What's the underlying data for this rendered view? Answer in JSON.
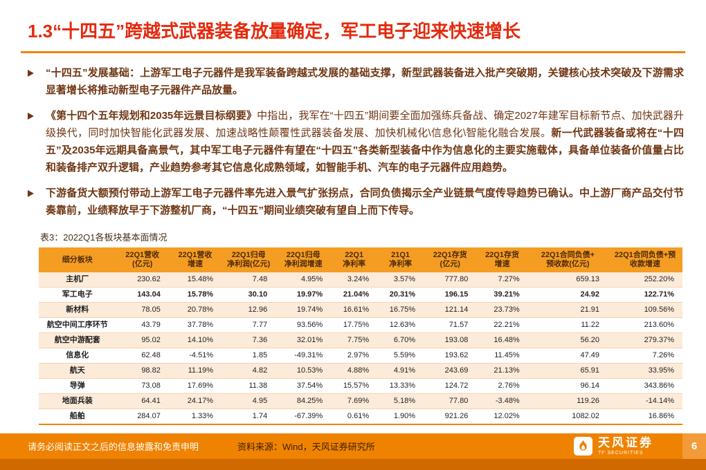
{
  "header": {
    "title": "1.3“十四五”跨越式武器装备放量确定，军工电子迎来快速增长"
  },
  "bullet_marker": "➢",
  "bullets": [
    {
      "segments": [
        {
          "bold": true,
          "text": "“十四五”发展基础：上游军工电子元器件是我军装备跨越式发展的基础支撑，新型武器装备进入批产突破期，关键核心技术突破及下游需求显著增长将推动新型电子元器件产品放量。"
        }
      ]
    },
    {
      "segments": [
        {
          "bold": true,
          "text": "《第十四个五年规划和2035年远景目标纲要》"
        },
        {
          "bold": false,
          "text": "中指出，我军在“十四五”期间要全面加强练兵备战、确定2027年建军目标新节点、加快武器升级换代，同时加快智能化武器发展、加速战略性颠覆性武器装备发展、加快机械化\\信息化\\智能化融合发展。"
        },
        {
          "bold": true,
          "text": "新一代武器装备或将在“十四五”及2035年远期具备高景气，其中军工电子元器件有望在“十四五”各类新型装备中作为信息化的主要实施载体，具备单位装备价值量占比和装备排产双升逻辑，产业趋势参考其它信息化成熟领域，如智能手机、汽车的电子元器件应用趋势。"
        }
      ]
    },
    {
      "segments": [
        {
          "bold": true,
          "text": "下游备货大额预付带动上游军工电子元器件率先进入景气扩张拐点，合同负债揭示全产业链景气度传导趋势已确认。中上游厂商产品交付节奏靠前，业绩释放早于下游整机厂商，“十四五”期间业绩突破有望自上而下传导。"
        }
      ]
    }
  ],
  "table": {
    "caption": "表3：2022Q1各板块基本面情况",
    "headers": [
      "细分板块",
      "22Q1营收\n(亿元)",
      "22Q1营收\n增速",
      "22Q1归母\n净利润(亿元)",
      "22Q1归母\n净利润增速",
      "22Q1\n净利率",
      "21Q1\n净利率",
      "22Q1存货\n(亿元)",
      "22Q1存货\n增速",
      "22Q1合同负债+\n预收款(亿元)",
      "22Q1合同负债+预\n收款增速"
    ],
    "rows": [
      {
        "name": "主机厂",
        "bold": false,
        "values": [
          "230.62",
          "15.48%",
          "7.48",
          "4.95%",
          "3.24%",
          "3.57%",
          "777.80",
          "7.27%",
          "659.13",
          "252.20%"
        ]
      },
      {
        "name": "军工电子",
        "bold": true,
        "values": [
          "143.04",
          "15.78%",
          "30.10",
          "19.97%",
          "21.04%",
          "20.31%",
          "196.15",
          "39.21%",
          "24.92",
          "122.71%"
        ]
      },
      {
        "name": "新材料",
        "bold": false,
        "values": [
          "78.05",
          "20.78%",
          "12.96",
          "19.74%",
          "16.61%",
          "16.75%",
          "121.14",
          "23.73%",
          "21.91",
          "109.56%"
        ]
      },
      {
        "name": "航空中间工序环节",
        "bold": false,
        "values": [
          "43.79",
          "37.78%",
          "7.77",
          "93.56%",
          "17.75%",
          "12.63%",
          "71.57",
          "22.21%",
          "11.22",
          "213.60%"
        ]
      },
      {
        "name": "航空中游配套",
        "bold": false,
        "values": [
          "95.02",
          "14.10%",
          "7.36",
          "32.01%",
          "7.75%",
          "6.70%",
          "193.08",
          "16.48%",
          "56.20",
          "279.37%"
        ]
      },
      {
        "name": "信息化",
        "bold": false,
        "values": [
          "62.48",
          "-4.51%",
          "1.85",
          "-49.31%",
          "2.97%",
          "5.59%",
          "193.62",
          "11.45%",
          "47.49",
          "7.26%"
        ]
      },
      {
        "name": "航天",
        "bold": false,
        "values": [
          "98.82",
          "11.19%",
          "4.82",
          "10.53%",
          "4.88%",
          "4.91%",
          "243.69",
          "21.13%",
          "65.91",
          "33.95%"
        ]
      },
      {
        "name": "导弹",
        "bold": false,
        "values": [
          "73.08",
          "17.69%",
          "11.38",
          "37.54%",
          "15.57%",
          "13.33%",
          "124.72",
          "2.76%",
          "96.14",
          "343.86%"
        ]
      },
      {
        "name": "地面兵装",
        "bold": false,
        "values": [
          "64.41",
          "24.17%",
          "4.95",
          "84.25%",
          "7.69%",
          "5.18%",
          "77.80",
          "-3.48%",
          "119.26",
          "-14.14%"
        ]
      },
      {
        "name": "船舶",
        "bold": false,
        "values": [
          "284.07",
          "1.33%",
          "1.74",
          "-67.39%",
          "0.61%",
          "1.90%",
          "921.26",
          "12.02%",
          "1082.02",
          "16.86%"
        ]
      }
    ]
  },
  "footer": {
    "disclaimer": "请务必阅读正文之后的信息披露和免责申明",
    "source": "资料来源：Wind，天风证券研究所",
    "brand_name": "天风证券",
    "brand_sub": "TF SECURITIES",
    "page_number": "6"
  },
  "colors": {
    "title_red": "#e32a0e",
    "body_brown": "#6f3613",
    "accent_orange": "#f08300",
    "table_header_bg": "#f59d23",
    "row_tint": "#fdebd9",
    "footer_orange": "#ef8200",
    "footer_dark": "#d06a00",
    "pagenum_bg": "#f29b38"
  }
}
